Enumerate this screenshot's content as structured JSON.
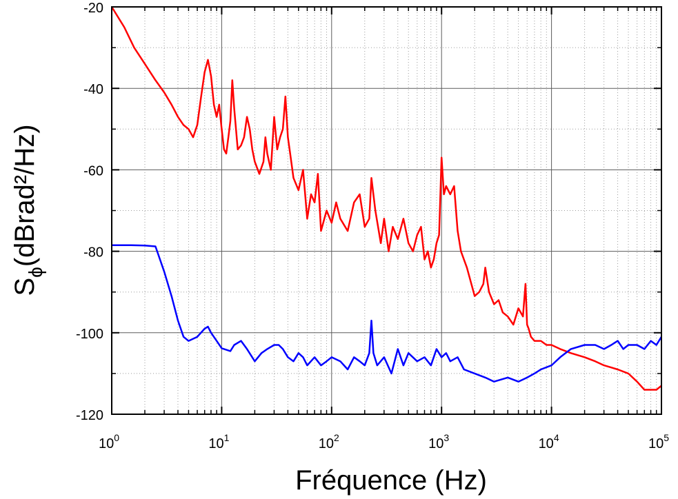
{
  "chart_data": {
    "type": "line",
    "xlabel": "Fréquence (Hz)",
    "ylabel_main": "S",
    "ylabel_sub": "ϕ",
    "ylabel_rest": "(dBrad²/Hz)",
    "x_scale": "log",
    "xlim": [
      1,
      100000
    ],
    "ylim": [
      -120,
      -20
    ],
    "grid": true,
    "x_ticks": [
      {
        "value": 1,
        "base": "10",
        "exp": "0"
      },
      {
        "value": 10,
        "base": "10",
        "exp": "1"
      },
      {
        "value": 100,
        "base": "10",
        "exp": "2"
      },
      {
        "value": 1000,
        "base": "10",
        "exp": "3"
      },
      {
        "value": 10000,
        "base": "10",
        "exp": "4"
      },
      {
        "value": 100000,
        "base": "10",
        "exp": "5"
      }
    ],
    "y_ticks": [
      {
        "value": -20,
        "label": "-20"
      },
      {
        "value": -40,
        "label": "-40"
      },
      {
        "value": -60,
        "label": "-60"
      },
      {
        "value": -80,
        "label": "-80"
      },
      {
        "value": -100,
        "label": "-100"
      },
      {
        "value": -120,
        "label": "-120"
      }
    ],
    "series": [
      {
        "color": "#ff0000",
        "x": [
          1,
          1.3,
          1.6,
          2,
          2.5,
          3,
          3.5,
          4,
          4.5,
          5,
          5.5,
          6,
          6.5,
          7,
          7.5,
          8,
          8.5,
          9,
          9.5,
          10,
          10.5,
          11,
          11.5,
          12,
          12.5,
          13,
          14,
          15,
          16,
          17,
          18,
          19,
          20,
          22,
          24,
          25,
          26,
          28,
          30,
          32,
          34,
          36,
          38,
          40,
          42,
          45,
          50,
          55,
          60,
          65,
          70,
          75,
          80,
          90,
          100,
          110,
          120,
          140,
          160,
          180,
          200,
          220,
          230,
          250,
          280,
          300,
          330,
          360,
          400,
          450,
          500,
          550,
          600,
          650,
          700,
          750,
          800,
          850,
          900,
          950,
          1000,
          1050,
          1100,
          1200,
          1300,
          1400,
          1500,
          1700,
          2000,
          2200,
          2400,
          2500,
          2700,
          3000,
          3300,
          3600,
          4000,
          4500,
          5000,
          5500,
          5800,
          6000,
          6200,
          6500,
          7000,
          8000,
          9000,
          10000,
          12000,
          15000,
          20000,
          25000,
          30000,
          40000,
          50000,
          60000,
          70000,
          80000,
          90000,
          100000
        ],
        "y": [
          -20,
          -25,
          -30,
          -34,
          -38,
          -41,
          -44,
          -47,
          -49,
          -50,
          -52,
          -49,
          -42,
          -36,
          -33,
          -37,
          -44,
          -47,
          -44,
          -50,
          -55,
          -56,
          -52,
          -48,
          -38,
          -45,
          -55,
          -54,
          -52,
          -47,
          -50,
          -55,
          -58,
          -61,
          -58,
          -52,
          -56,
          -60,
          -47,
          -55,
          -52,
          -50,
          -42,
          -52,
          -56,
          -62,
          -65,
          -60,
          -72,
          -66,
          -68,
          -61,
          -75,
          -70,
          -73,
          -68,
          -72,
          -75,
          -68,
          -66,
          -74,
          -72,
          -62,
          -70,
          -78,
          -72,
          -80,
          -74,
          -77,
          -72,
          -78,
          -80,
          -76,
          -74,
          -82,
          -80,
          -84,
          -82,
          -78,
          -76,
          -57,
          -66,
          -64,
          -66,
          -64,
          -75,
          -80,
          -84,
          -91,
          -90,
          -88,
          -84,
          -90,
          -93,
          -92,
          -95,
          -96,
          -98,
          -94,
          -96,
          -88,
          -98,
          -99,
          -101,
          -102,
          -102,
          -103,
          -103,
          -104,
          -105,
          -106,
          -107,
          -108,
          -109,
          -110,
          -112,
          -114,
          -114,
          -114,
          -113
        ]
      },
      {
        "color": "#0000ff",
        "x": [
          1,
          1.5,
          2,
          2.5,
          3,
          3.5,
          4,
          4.5,
          5,
          6,
          7,
          7.5,
          8,
          9,
          10,
          12,
          13,
          15,
          17,
          20,
          23,
          26,
          30,
          33,
          36,
          40,
          45,
          50,
          55,
          60,
          70,
          80,
          90,
          100,
          120,
          140,
          160,
          180,
          200,
          220,
          230,
          240,
          260,
          300,
          350,
          400,
          450,
          500,
          600,
          700,
          800,
          900,
          1000,
          1100,
          1200,
          1400,
          1600,
          2000,
          2500,
          3000,
          4000,
          5000,
          6000,
          7000,
          8000,
          10000,
          12000,
          15000,
          20000,
          25000,
          30000,
          35000,
          40000,
          45000,
          50000,
          60000,
          70000,
          80000,
          90000,
          100000
        ],
        "y": [
          -78.5,
          -78.5,
          -78.6,
          -78.8,
          -85,
          -91,
          -97,
          -101,
          -102,
          -101,
          -99,
          -98.5,
          -100,
          -102,
          -103.8,
          -104.5,
          -103,
          -102,
          -104,
          -107,
          -105,
          -104,
          -103,
          -103,
          -104,
          -106,
          -107,
          -105,
          -106,
          -108,
          -106,
          -108,
          -107,
          -106,
          -107,
          -109,
          -106,
          -107,
          -108,
          -105,
          -97,
          -105,
          -108,
          -106,
          -110,
          -104,
          -108,
          -105,
          -107,
          -106,
          -108,
          -104,
          -106,
          -105,
          -107,
          -106,
          -109,
          -110,
          -111,
          -112,
          -111,
          -112,
          -111,
          -110,
          -109,
          -108,
          -106,
          -104,
          -103,
          -103,
          -104,
          -103,
          -102,
          -104,
          -103,
          -103,
          -104,
          -102,
          -103,
          -101
        ]
      }
    ]
  }
}
